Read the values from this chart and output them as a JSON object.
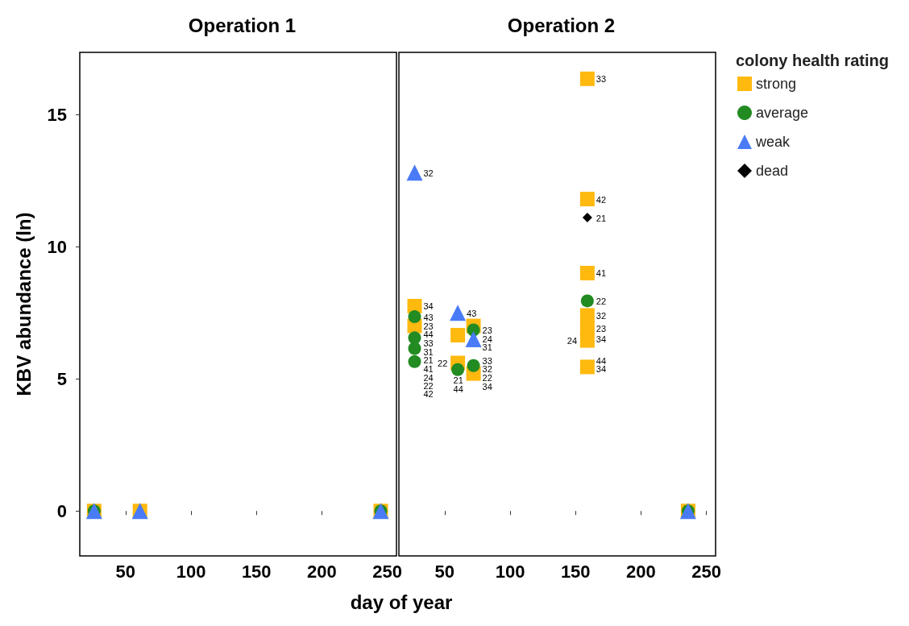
{
  "chart_data": [
    {
      "type": "scatter",
      "title": "Operation 1",
      "xlabel": "day of year",
      "ylabel": "KBV abundance (ln)",
      "xlim": [
        15,
        257
      ],
      "xticks": [
        50,
        100,
        150,
        200,
        250
      ],
      "ylim": [
        -1.7,
        17.35
      ],
      "yticks": [
        0,
        5,
        10,
        15
      ],
      "grid": false,
      "legend": "right",
      "legend_title": "colony health rating",
      "series": [
        {
          "name": "strong",
          "color": "#ffb90f",
          "marker": "square",
          "x": [
            26,
            61,
            245
          ],
          "values": [
            0,
            0,
            0
          ]
        },
        {
          "name": "average",
          "color": "#228b22",
          "marker": "circle",
          "x": [
            26,
            245
          ],
          "values": [
            0,
            0
          ]
        },
        {
          "name": "weak",
          "color": "#4a7bf7",
          "marker": "triangle",
          "x": [
            26,
            61,
            245
          ],
          "values": [
            0,
            0,
            0
          ]
        }
      ]
    },
    {
      "type": "scatter",
      "title": "Operation 2",
      "xlim": [
        15,
        257
      ],
      "xticks": [
        50,
        100,
        150,
        200,
        250
      ],
      "ylim": [
        -1.7,
        17.35
      ],
      "yticks": [
        0,
        5,
        10,
        15
      ],
      "grid": false,
      "tick_labels": "x",
      "legend": "right",
      "series": [
        {
          "name": "strong",
          "color": "#ffb90f",
          "marker": "square",
          "x": [
            27,
            27,
            60,
            60,
            72,
            72,
            159,
            159,
            159,
            159,
            159,
            159,
            159,
            236
          ],
          "values": [
            7.75,
            7.0,
            6.65,
            5.6,
            7.0,
            5.2,
            16.35,
            11.8,
            9.0,
            7.4,
            6.9,
            6.45,
            5.45,
            0
          ]
        },
        {
          "name": "average",
          "color": "#228b22",
          "marker": "circle",
          "x": [
            27,
            27,
            27,
            27,
            60,
            72,
            72,
            159,
            236
          ],
          "values": [
            7.35,
            6.55,
            6.15,
            5.65,
            5.35,
            6.85,
            5.5,
            7.95,
            0
          ]
        },
        {
          "name": "weak",
          "color": "#4a7bf7",
          "marker": "triangle",
          "x": [
            27,
            60,
            72,
            236
          ],
          "values": [
            12.8,
            7.5,
            6.5,
            0
          ]
        },
        {
          "name": "dead",
          "color": "#000000",
          "marker": "diamond",
          "x": [
            159
          ],
          "values": [
            11.1
          ]
        }
      ],
      "annotations": [
        {
          "text": "32",
          "x": 27,
          "y": 12.8
        },
        {
          "text": "34",
          "x": 27,
          "y": 7.75
        },
        {
          "text": "43",
          "x": 27,
          "y": 7.35
        },
        {
          "text": "23",
          "x": 27,
          "y": 7.0
        },
        {
          "text": "44",
          "x": 27,
          "y": 6.9
        },
        {
          "text": "33",
          "x": 27,
          "y": 6.6
        },
        {
          "text": "31",
          "x": 27,
          "y": 6.4
        },
        {
          "text": "21",
          "x": 27,
          "y": 6.15
        },
        {
          "text": "41",
          "x": 27,
          "y": 6.0
        },
        {
          "text": "24",
          "x": 27,
          "y": 5.7
        },
        {
          "text": "22",
          "x": 27,
          "y": 5.6
        },
        {
          "text": "42",
          "x": 27,
          "y": 5.5
        },
        {
          "text": "43",
          "x": 60,
          "y": 7.5
        },
        {
          "text": "22",
          "x": 60,
          "y": 5.6
        },
        {
          "text": "23",
          "x": 72,
          "y": 6.85
        },
        {
          "text": "24",
          "x": 72,
          "y": 6.5
        },
        {
          "text": "31",
          "x": 72,
          "y": 6.5
        },
        {
          "text": "33",
          "x": 72,
          "y": 5.7
        },
        {
          "text": "32",
          "x": 72,
          "y": 5.5
        },
        {
          "text": "22",
          "x": 72,
          "y": 5.45
        },
        {
          "text": "21",
          "x": 72,
          "y": 5.25
        },
        {
          "text": "34",
          "x": 72,
          "y": 5.15
        },
        {
          "text": "44",
          "x": 72,
          "y": 4.8
        },
        {
          "text": "33",
          "x": 159,
          "y": 16.35
        },
        {
          "text": "42",
          "x": 159,
          "y": 11.8
        },
        {
          "text": "21",
          "x": 159,
          "y": 11.1
        },
        {
          "text": "41",
          "x": 159,
          "y": 9.0
        },
        {
          "text": "22",
          "x": 159,
          "y": 7.95
        },
        {
          "text": "32",
          "x": 159,
          "y": 7.4
        },
        {
          "text": "23",
          "x": 159,
          "y": 6.9
        },
        {
          "text": "34",
          "x": 159,
          "y": 6.5
        },
        {
          "text": "24",
          "x": 159,
          "y": 6.45
        },
        {
          "text": "44",
          "x": 159,
          "y": 5.7
        },
        {
          "text": "34",
          "x": 159,
          "y": 5.45
        }
      ]
    }
  ]
}
